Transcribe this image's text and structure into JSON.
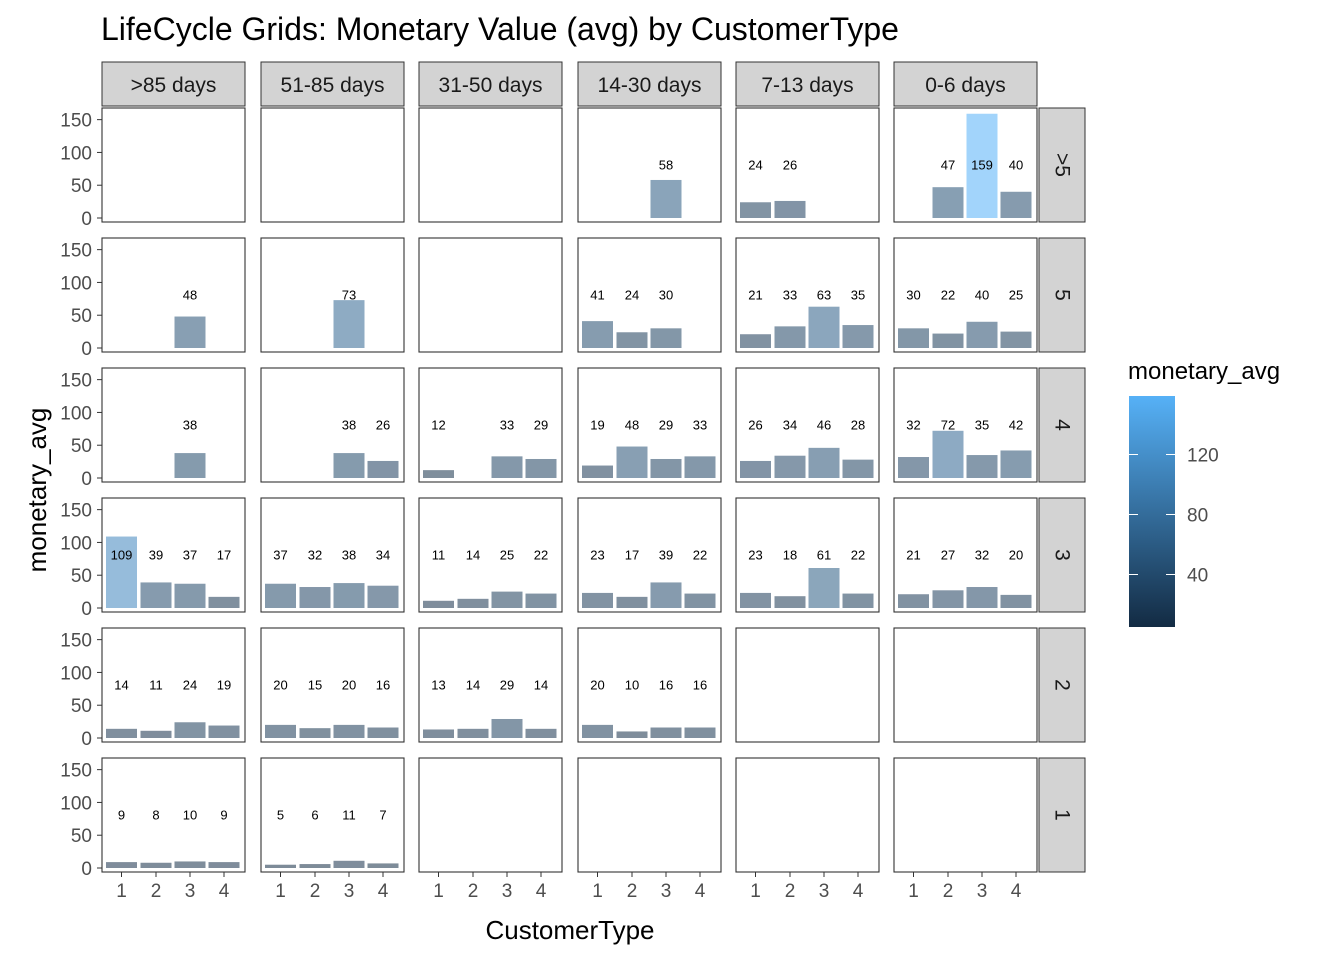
{
  "chart_data": {
    "type": "bar",
    "title": "LifeCycle Grids: Monetary Value (avg) by CustomerType",
    "xlabel": "CustomerType",
    "ylabel": "monetary_avg",
    "x_categories": [
      "1",
      "2",
      "3",
      "4"
    ],
    "ylim": [
      0,
      170
    ],
    "y_ticks": [
      0,
      50,
      100,
      150
    ],
    "columns": [
      ">85 days",
      "51-85 days",
      "31-50 days",
      "14-30 days",
      "7-13 days",
      "0-6 days"
    ],
    "rows": [
      ">5",
      "5",
      "4",
      "3",
      "2",
      "1"
    ],
    "legend": {
      "title": "monetary_avg",
      "ticks": [
        40,
        80,
        120
      ],
      "range": [
        5,
        159
      ],
      "color_low": "#132b43",
      "color_high": "#56b1f7"
    },
    "panels": [
      [
        [
          null,
          null,
          null,
          null
        ],
        [
          null,
          null,
          null,
          null
        ],
        [
          null,
          null,
          null,
          null
        ],
        [
          null,
          null,
          58,
          null
        ],
        [
          24,
          26,
          null,
          null
        ],
        [
          null,
          47,
          159,
          40
        ]
      ],
      [
        [
          null,
          null,
          48,
          null
        ],
        [
          null,
          null,
          73,
          null
        ],
        [
          null,
          null,
          null,
          null
        ],
        [
          41,
          24,
          30,
          null
        ],
        [
          21,
          33,
          63,
          35
        ],
        [
          30,
          22,
          40,
          25
        ]
      ],
      [
        [
          null,
          null,
          38,
          null
        ],
        [
          null,
          null,
          38,
          26
        ],
        [
          12,
          null,
          33,
          29
        ],
        [
          19,
          48,
          29,
          33
        ],
        [
          26,
          34,
          46,
          28
        ],
        [
          32,
          72,
          35,
          42
        ]
      ],
      [
        [
          109,
          39,
          37,
          17
        ],
        [
          37,
          32,
          38,
          34
        ],
        [
          11,
          14,
          25,
          22
        ],
        [
          23,
          17,
          39,
          22
        ],
        [
          23,
          18,
          61,
          22
        ],
        [
          21,
          27,
          32,
          20
        ]
      ],
      [
        [
          14,
          11,
          24,
          19
        ],
        [
          20,
          15,
          20,
          16
        ],
        [
          13,
          14,
          29,
          14
        ],
        [
          20,
          10,
          16,
          16
        ],
        [
          null,
          null,
          null,
          null
        ],
        [
          null,
          null,
          null,
          null
        ]
      ],
      [
        [
          9,
          8,
          10,
          9
        ],
        [
          5,
          6,
          11,
          7
        ],
        [
          null,
          null,
          null,
          null
        ],
        [
          null,
          null,
          null,
          null
        ],
        [
          null,
          null,
          null,
          null
        ],
        [
          null,
          null,
          null,
          null
        ]
      ]
    ]
  }
}
